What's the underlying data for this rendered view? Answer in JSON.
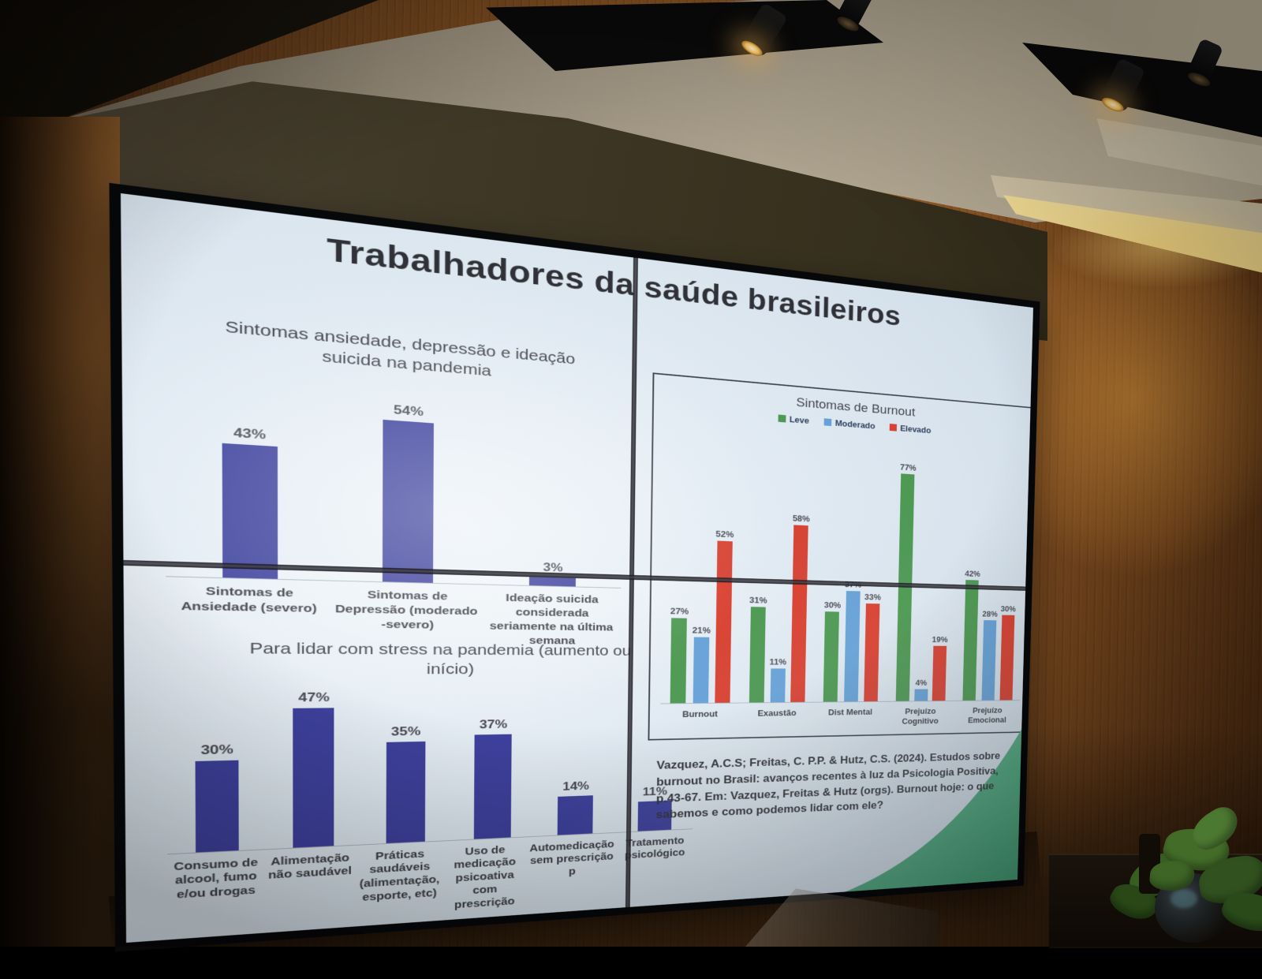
{
  "slide": {
    "title": "Trabalhadores da saúde brasileiros",
    "citation": "Vazquez, A.C.S; Freitas, C. P.P. & Hutz, C.S. (2024). Estudos sobre burnout no Brasil: avanços recentes à luz da Psicologia Positiva, p.43-67. Em: Vazquez, Freitas & Hutz (orgs). Burnout hoje: o que sabemos e como podemos lidar com ele?"
  },
  "colors": {
    "bar_blue": "#303396",
    "leve_green": "#3f9143",
    "moderado_blue": "#5b9bd5",
    "elevado_red": "#d8311f",
    "wave_green": "#45a578",
    "slide_background": "#e2ebf3"
  },
  "chart_data": [
    {
      "id": "anxiety",
      "type": "bar",
      "title": "Sintomas ansiedade, depressão e ideação suicida na pandemia",
      "categories": [
        "Sintomas de Ansiedade (severo)",
        "Sintomas de Depressão (moderado -severo)",
        "Ideação suicida considerada seriamente na última semana"
      ],
      "values": [
        43,
        54,
        3
      ],
      "unit": "%",
      "bar_color": "#303396",
      "ylim": [
        0,
        60
      ],
      "grid": false,
      "value_labels": true
    },
    {
      "id": "stress",
      "type": "bar",
      "title": "Para lidar com stress na pandemia (aumento ou início)",
      "categories": [
        "Consumo de alcool, fumo e/ou drogas",
        "Alimentação não saudável",
        "Práticas saudáveis (alimentação, esporte, etc)",
        "Uso de medicação psicoativa com prescrição",
        "Automedicação sem prescrição p",
        "Tratamento psicológico"
      ],
      "values": [
        30,
        47,
        35,
        37,
        14,
        11
      ],
      "unit": "%",
      "bar_color": "#303396",
      "ylim": [
        0,
        50
      ],
      "grid": false,
      "value_labels": true
    },
    {
      "id": "burnout",
      "type": "bar",
      "title": "Sintomas de Burnout",
      "categories": [
        "Burnout",
        "Exaustão",
        "Dist Mental",
        "Prejuízo Cognitivo",
        "Prejuízo Emocional"
      ],
      "series": [
        {
          "name": "Leve",
          "color": "#3f9143",
          "values": [
            27,
            31,
            30,
            77,
            42
          ]
        },
        {
          "name": "Moderado",
          "color": "#5b9bd5",
          "values": [
            21,
            11,
            37,
            4,
            28
          ]
        },
        {
          "name": "Elevado",
          "color": "#d8311f",
          "values": [
            52,
            58,
            33,
            19,
            30
          ]
        }
      ],
      "unit": "%",
      "ylim": [
        0,
        85
      ],
      "grid": false,
      "legend_position": "top",
      "value_labels": true
    }
  ]
}
